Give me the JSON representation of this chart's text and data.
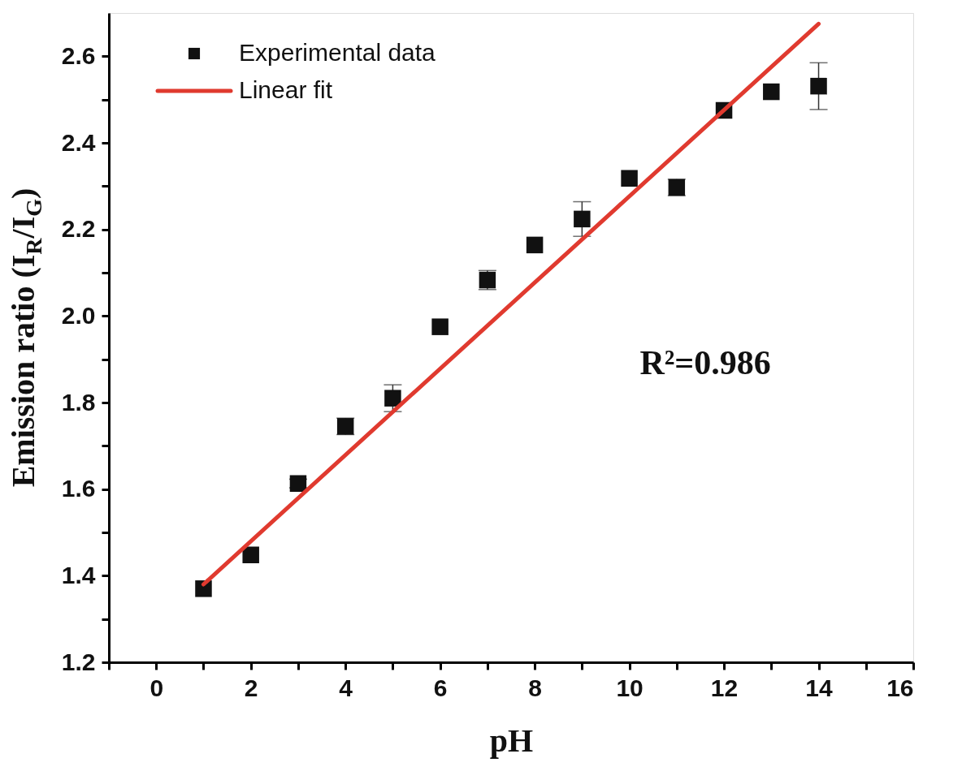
{
  "chart_data": {
    "type": "scatter",
    "xlabel": "pH",
    "ylabel": "Emission ratio (I$_{R}$/I$_{G}$)",
    "xlim": [
      -1,
      16
    ],
    "ylim": [
      1.2,
      2.7
    ],
    "xticks": [
      {
        "value": -1,
        "label": null
      },
      0,
      {
        "value": 1,
        "label": null
      },
      2,
      {
        "value": 3,
        "label": null
      },
      4,
      {
        "value": 5,
        "label": null
      },
      6,
      {
        "value": 7,
        "label": null
      },
      8,
      {
        "value": 9,
        "label": null
      },
      10,
      {
        "value": 11,
        "label": null
      },
      12,
      {
        "value": 13,
        "label": null
      },
      14,
      {
        "value": 15,
        "label": null
      },
      16
    ],
    "yticks": [
      {
        "value": 1.2,
        "label": "1.2"
      },
      {
        "value": 1.3,
        "label": null
      },
      {
        "value": 1.4,
        "label": "1.4"
      },
      {
        "value": 1.5,
        "label": null
      },
      {
        "value": 1.6,
        "label": "1.6"
      },
      {
        "value": 1.7,
        "label": null
      },
      {
        "value": 1.8,
        "label": "1.8"
      },
      {
        "value": 1.9,
        "label": null
      },
      {
        "value": 2.0,
        "label": "2.0"
      },
      {
        "value": 2.1,
        "label": null
      },
      {
        "value": 2.2,
        "label": "2.2"
      },
      {
        "value": 2.3,
        "label": null
      },
      {
        "value": 2.4,
        "label": "2.4"
      },
      {
        "value": 2.5,
        "label": null
      },
      {
        "value": 2.6,
        "label": "2.6"
      }
    ],
    "series": [
      {
        "name": "Experimental data",
        "color": "#111111",
        "marker": "square",
        "x": [
          1,
          2,
          3,
          4,
          5,
          6,
          7,
          8,
          9,
          10,
          11,
          12,
          13,
          14
        ],
        "values": [
          1.37,
          1.448,
          1.613,
          1.745,
          1.81,
          1.975,
          2.083,
          2.164,
          2.224,
          2.318,
          2.297,
          2.475,
          2.518,
          2.531
        ],
        "errors": [
          null,
          null,
          0.01,
          0.019,
          0.031,
          null,
          0.022,
          null,
          0.04,
          null,
          0.019,
          null,
          null,
          0.054
        ]
      },
      {
        "name": "Linear fit",
        "type": "line",
        "color": "#e03a2f",
        "line_style": "solid",
        "x": [
          1,
          14
        ],
        "values": [
          1.38,
          2.675
        ]
      }
    ],
    "annotations": [
      "R²=0.986"
    ],
    "legend": "top left",
    "grid": false
  }
}
